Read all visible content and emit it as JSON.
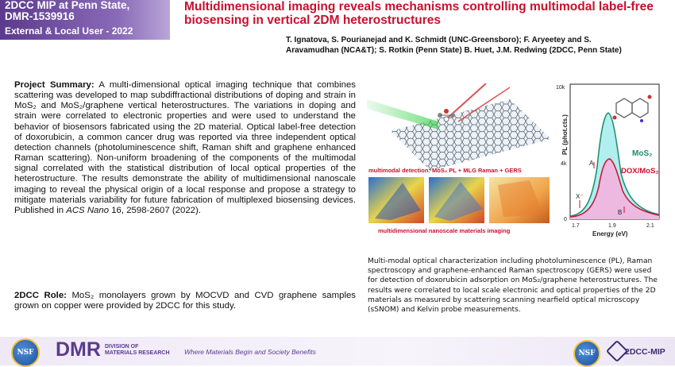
{
  "header": {
    "line1": "2DCC MIP at Penn State,",
    "line2": "DMR-1539916",
    "line3": "External & Local User - 2022"
  },
  "title": "Multidimensional imaging reveals mechanisms controlling multimodal label-free biosensing in vertical 2DM heterostructures",
  "authors": {
    "line1": "T. Ignatova,  S. Pourianejad and  K.  Schmidt (UNC-Greensboro);  F.  Aryeetey and  S.",
    "line2": "Aravamudhan (NCA&T);  S. Rotkin (Penn State) B. Huet, J.M. Redwing (2DCC, Penn State)"
  },
  "summary": {
    "label": "Project Summary:",
    "text": " A multi-dimensional optical imaging technique that combines scattering  was developed to map subdiffractional distributions of doping and strain in MoS₂ and MoS₂/graphene vertical heterostructures. The variations in doping and strain were correlated to electronic properties and were used to understand the behavior of biosensors fabricated using the 2D material. Optical label-free detection of doxorubicin, a common cancer drug was reported via three independent optical detection channels (photoluminescence shift, Raman shift and graphene enhanced Raman scattering). Non-uniform broadening of the components of the multimodal signal correlated with the statistical distribution of local optical properties of the heterostructure. The results demonstrate the ability of multidimensional nanoscale imaging to reveal the physical origin of a local response and propose a strategy to mitigate materials variability for future fabrication of multiplexed biosensing devices. Published in ",
    "journal": "ACS Nano",
    "citation": " 16, 2598-2607 (2022)."
  },
  "role": {
    "label": "2DCC Role:",
    "text": " MoS₂ monolayers grown by MOCVD and CVD graphene samples grown on copper were provided by 2DCC for this study."
  },
  "figure": {
    "multimodal_label": "multimodal detection: MoS₂ PL + MLG Raman + GERS",
    "imaging_label": "multidimensional nanoscale materials imaging"
  },
  "pl_plot": {
    "ylabel": "PL (phot.cts.)",
    "xlabel": "Energy (eV)",
    "y_ticks": [
      "10k",
      "4k",
      "0"
    ],
    "x_ticks": [
      "1.7",
      "1.9",
      "2.1"
    ],
    "series1": "MoS₂",
    "series2": "DOX/MoS₂",
    "peak_A": "A",
    "peak_X": "X⁻",
    "peak_B": "B"
  },
  "caption": "Multi-modal optical characterization including photoluminescence (PL), Raman spectroscopy and graphene-enhanced Raman spectroscopy (GERS) were used for detection of doxorubicin adsorption on MoS₂/graphene heterostructures.  The results were correlated to local scale electronic and optical properties of the 2D materials as measured by scattering scanning nearfield optical microscopy (sSNOM) and Kelvin probe measurements.",
  "footer": {
    "nsf": "NSF",
    "dmr": "DMR",
    "division_line1": "DIVISION OF",
    "division_line2": "MATERIALS RESEARCH",
    "tagline": "Where Materials Begin and Society Benefits",
    "logo_text": "2DCC-MIP"
  },
  "colors": {
    "accent_purple": "#5c3a8d",
    "title_red": "#c8102e",
    "mos2_green": "#1a8a6e",
    "dox_red": "#c8102e"
  },
  "icons": [
    "nsf-seal-icon",
    "graphene-lattice-icon",
    "molecule-icon",
    "hexagon-logo-icon"
  ]
}
